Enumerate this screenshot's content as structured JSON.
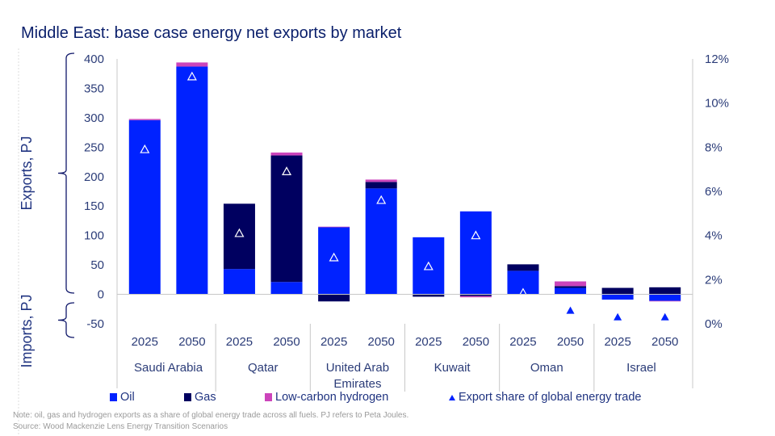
{
  "title": "Middle East: base case energy net exports by market",
  "chart_data": {
    "type": "bar",
    "stacked": true,
    "title": "Middle East: base case energy net exports by market",
    "ylabel_exports": "Exports, PJ",
    "ylabel_imports": "Imports, PJ",
    "ylim": [
      -50,
      400
    ],
    "yticks": [
      -50,
      0,
      50,
      100,
      150,
      200,
      250,
      300,
      350,
      400
    ],
    "y2lim": [
      0,
      12
    ],
    "y2ticks": [
      "0%",
      "2%",
      "4%",
      "6%",
      "8%",
      "10%",
      "12%"
    ],
    "groups": [
      {
        "name": "Saudi Arabia",
        "years": [
          "2025",
          "2050"
        ]
      },
      {
        "name": "Qatar",
        "years": [
          "2025",
          "2050"
        ]
      },
      {
        "name": "United Arab Emirates",
        "years": [
          "2025",
          "2050"
        ]
      },
      {
        "name": "Kuwait",
        "years": [
          "2025",
          "2050"
        ]
      },
      {
        "name": "Oman",
        "years": [
          "2025",
          "2050"
        ]
      },
      {
        "name": "Israel",
        "years": [
          "2025",
          "2050"
        ]
      }
    ],
    "series": [
      {
        "name": "Oil",
        "color": "#0022ff",
        "values": [
          296,
          387,
          43,
          21,
          114,
          180,
          97,
          141,
          40,
          11,
          -9,
          -11
        ]
      },
      {
        "name": "Gas",
        "color": "#000060",
        "values": [
          0,
          0,
          111,
          215,
          -12,
          11,
          -4,
          -3,
          11,
          3,
          11,
          12
        ]
      },
      {
        "name": "Low-carbon hydrogen",
        "color": "#cc44bb",
        "values": [
          2,
          7,
          0,
          5,
          1,
          4,
          0,
          -2,
          0,
          8,
          0,
          -1
        ]
      }
    ],
    "share_series": {
      "name": "Export share of global energy trade",
      "axis": "right",
      "unit": "%",
      "color": "#0022ff",
      "values": [
        7.9,
        11.2,
        4.1,
        6.9,
        3.0,
        5.6,
        2.6,
        4.0,
        1.4,
        0.6,
        0.3,
        0.3
      ]
    },
    "grid": false,
    "legend_position": "bottom"
  },
  "notes": {
    "note": "Note: oil, gas and hydrogen exports as a share of global energy trade across all fuels. PJ refers to Peta Joules.",
    "source": "Source: Wood Mackenzie Lens Energy Transition Scenarios"
  }
}
